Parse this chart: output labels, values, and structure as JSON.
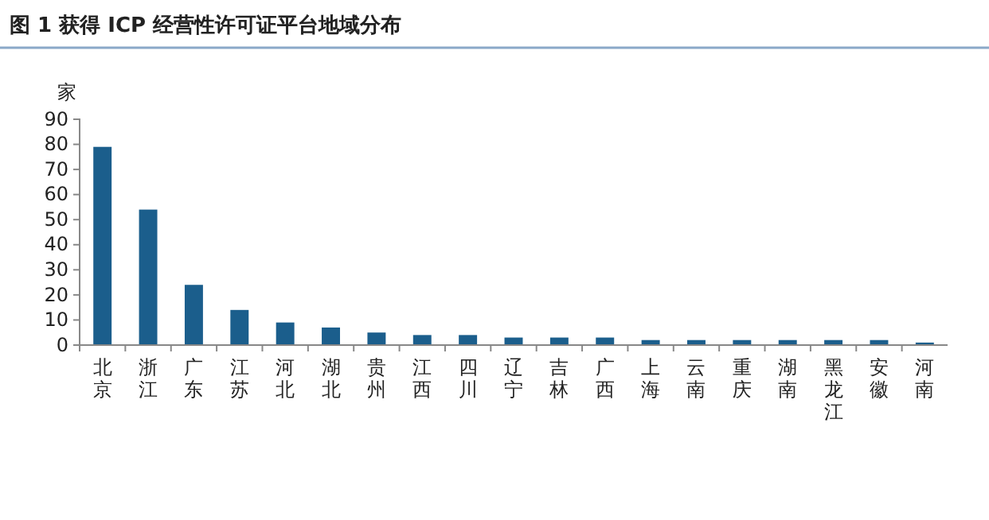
{
  "chart_data": {
    "type": "bar",
    "title": "图 1 获得 ICP 经营性许可证平台地域分布",
    "ylabel": "家",
    "categories": [
      "北京",
      "浙江",
      "广东",
      "江苏",
      "河北",
      "湖北",
      "贵州",
      "江西",
      "四川",
      "辽宁",
      "吉林",
      "广西",
      "上海",
      "云南",
      "重庆",
      "湖南",
      "黑龙江",
      "安徽",
      "河南"
    ],
    "values": [
      79,
      54,
      24,
      14,
      9,
      7,
      5,
      4,
      4,
      3,
      3,
      3,
      2,
      2,
      2,
      2,
      2,
      2,
      1
    ],
    "color": "#1b5e8c",
    "ylim": [
      0,
      90
    ],
    "yticks": [
      0,
      10,
      20,
      30,
      40,
      50,
      60,
      70,
      80,
      90
    ],
    "grid": false
  }
}
